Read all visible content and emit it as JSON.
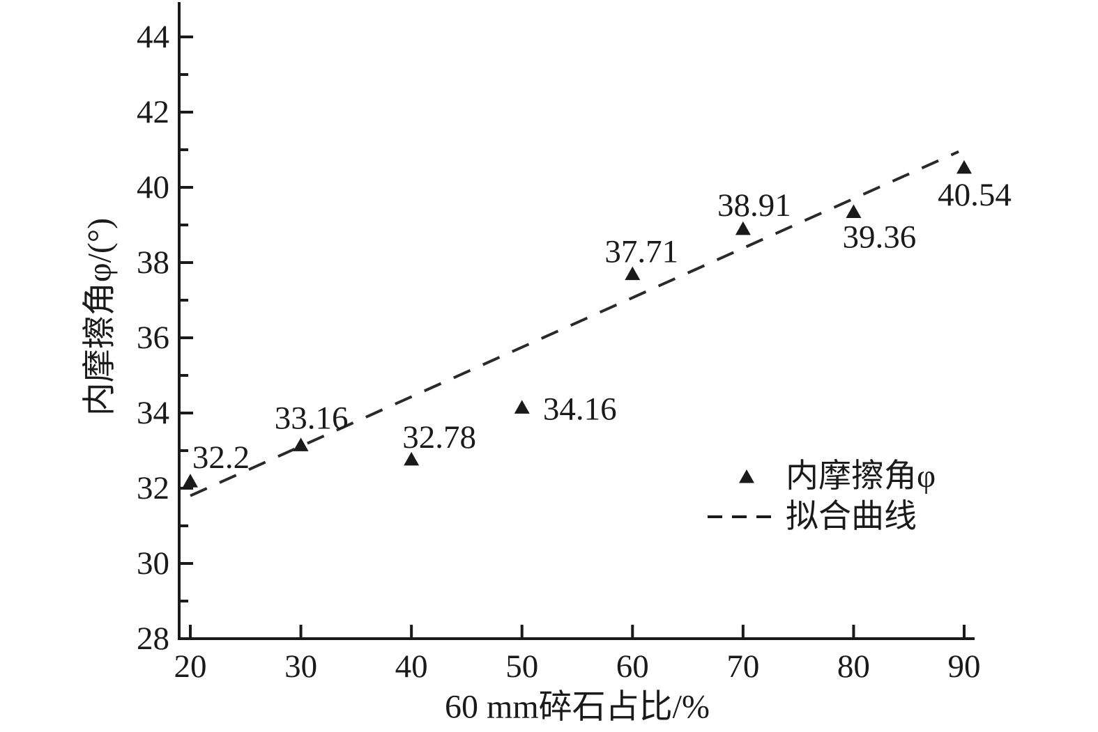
{
  "chart_data": {
    "type": "scatter",
    "title": "",
    "xlabel": "60 mm碎石占比/%",
    "ylabel": "内摩擦角φ/(°)",
    "xlim": [
      19,
      91
    ],
    "ylim": [
      28,
      45
    ],
    "grid": false,
    "x_ticks": [
      20,
      30,
      40,
      50,
      60,
      70,
      80,
      90
    ],
    "y_ticks": [
      28,
      30,
      32,
      34,
      36,
      38,
      40,
      42,
      44
    ],
    "y_minor_ticks": [
      29,
      31,
      33,
      35,
      37,
      39,
      41,
      43
    ],
    "series": [
      {
        "name": "内摩擦角φ",
        "type": "scatter",
        "marker": "triangle",
        "color": "#1a1a1a",
        "points": [
          {
            "x": 20,
            "y": 32.2,
            "label": "32.2",
            "label_offset": [
              44,
              -33
            ]
          },
          {
            "x": 30,
            "y": 33.16,
            "label": "33.16",
            "label_offset": [
              15,
              -38
            ]
          },
          {
            "x": 40,
            "y": 32.78,
            "label": "32.78",
            "label_offset": [
              40,
              -31
            ]
          },
          {
            "x": 50,
            "y": 34.16,
            "label": "34.16",
            "label_offset": [
              83,
              3
            ]
          },
          {
            "x": 60,
            "y": 37.71,
            "label": "37.71",
            "label_offset": [
              13,
              -31
            ]
          },
          {
            "x": 70,
            "y": 38.91,
            "label": "38.91",
            "label_offset": [
              16,
              -33
            ]
          },
          {
            "x": 80,
            "y": 39.36,
            "label": "39.36",
            "label_offset": [
              37,
              37
            ]
          },
          {
            "x": 90,
            "y": 40.54,
            "label": "40.54",
            "label_offset": [
              15,
              40
            ]
          }
        ]
      },
      {
        "name": "拟合曲线",
        "type": "line",
        "style": "dashed",
        "color": "#2a2a2a",
        "endpoints": [
          {
            "x": 20,
            "y": 31.8
          },
          {
            "x": 89.5,
            "y": 40.95
          }
        ]
      }
    ],
    "legend": {
      "position": "inside-lower-right",
      "items": [
        {
          "marker": "triangle",
          "label": "内摩擦角φ"
        },
        {
          "marker": "dashed-line",
          "label": "拟合曲线"
        }
      ]
    },
    "colors": {
      "foreground": "#1a1a1a",
      "background": "#ffffff"
    }
  }
}
